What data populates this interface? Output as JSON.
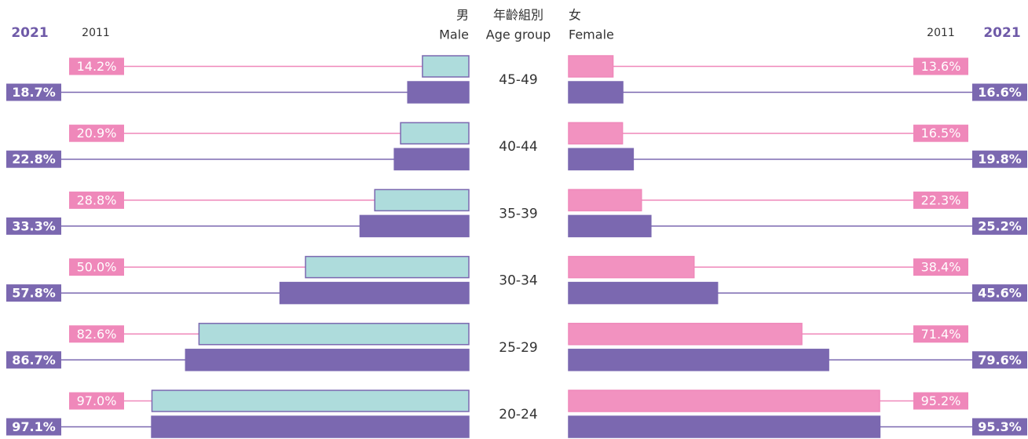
{
  "chart_data": {
    "type": "butterfly",
    "center_label": "年齡組別",
    "center_label_en": "Age group",
    "categories": [
      "45-49",
      "40-44",
      "35-39",
      "30-34",
      "25-29",
      "20-24"
    ],
    "xlim": [
      0,
      100
    ],
    "panels": [
      {
        "label": "男",
        "label_en": "Male",
        "side": "left",
        "series": [
          {
            "name": "2011",
            "color": "#aedcdc",
            "border": "#7b68b0",
            "label_color": "#ef88ba",
            "values": [
              14.2,
              20.9,
              28.8,
              50.0,
              82.6,
              97.0
            ],
            "value_labels": [
              "14.2%",
              "20.9%",
              "28.8%",
              "50.0%",
              "82.6%",
              "97.0%"
            ]
          },
          {
            "name": "2021",
            "color": "#7b68b0",
            "border": "#7b68b0",
            "label_color": "#7b68b0",
            "values": [
              18.7,
              22.8,
              33.3,
              57.8,
              86.7,
              97.1
            ],
            "value_labels": [
              "18.7%",
              "22.8%",
              "33.3%",
              "57.8%",
              "86.7%",
              "97.1%"
            ]
          }
        ]
      },
      {
        "label": "女",
        "label_en": "Female",
        "side": "right",
        "series": [
          {
            "name": "2011",
            "color": "#f292c0",
            "border": "#ef88ba",
            "label_color": "#ef88ba",
            "values": [
              13.6,
              16.5,
              22.3,
              38.4,
              71.4,
              95.2
            ],
            "value_labels": [
              "13.6%",
              "16.5%",
              "22.3%",
              "38.4%",
              "71.4%",
              "95.2%"
            ]
          },
          {
            "name": "2021",
            "color": "#7b68b0",
            "border": "#7b68b0",
            "label_color": "#7b68b0",
            "values": [
              16.6,
              19.8,
              25.2,
              45.6,
              79.6,
              95.3
            ],
            "value_labels": [
              "16.6%",
              "19.8%",
              "25.2%",
              "45.6%",
              "79.6%",
              "95.3%"
            ]
          }
        ]
      }
    ]
  }
}
